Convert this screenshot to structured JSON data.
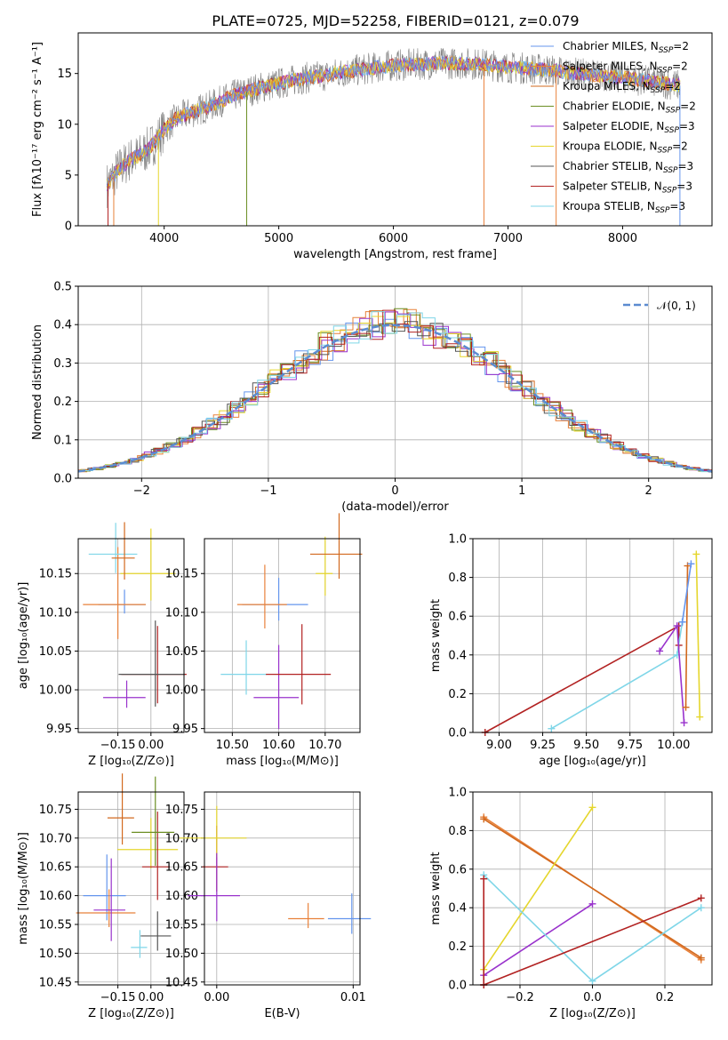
{
  "title": "PLATE=0725, MJD=52258, FIBERID=0121, z=0.079",
  "colors": [
    "#6495ed",
    "#e8813a",
    "#d2691e",
    "#6b8e23",
    "#9932cc",
    "#e5d62c",
    "#555555",
    "#b22222",
    "#7fd6e8"
  ],
  "chart_data": [
    {
      "type": "line",
      "id": "spectrum",
      "xlabel": "wavelength [Angstrom, rest frame]",
      "ylabel": "Flux [fλ10⁻¹⁷ erg cm⁻² s⁻¹ A⁻¹]",
      "xlim": [
        3250,
        8780
      ],
      "ylim": [
        0,
        19
      ],
      "xticks": [
        4000,
        5000,
        6000,
        7000,
        8000
      ],
      "yticks": [
        0,
        5,
        10,
        15
      ],
      "series_labels": [
        "Chabrier MILES, N_SSP=2",
        "Salpeter MILES, N_SSP=2",
        "Kroupa MILES, N_SSP=2",
        "Chabrier ELODIE, N_SSP=2",
        "Salpeter ELODIE, N_SSP=3",
        "Kroupa ELODIE, N_SSP=2",
        "Chabrier STELIB, N_SSP=3",
        "Salpeter STELIB, N_SSP=3",
        "Kroupa STELIB, N_SSP=3"
      ],
      "continuum": [
        [
          3500,
          4
        ],
        [
          3600,
          5.5
        ],
        [
          3700,
          6.5
        ],
        [
          3800,
          7
        ],
        [
          3900,
          8
        ],
        [
          4000,
          9.5
        ],
        [
          4100,
          10.5
        ],
        [
          4200,
          11
        ],
        [
          4400,
          11.8
        ],
        [
          4600,
          12.8
        ],
        [
          4800,
          13.5
        ],
        [
          5000,
          14
        ],
        [
          5200,
          14.5
        ],
        [
          5400,
          14.8
        ],
        [
          5600,
          15.2
        ],
        [
          5800,
          15.5
        ],
        [
          6000,
          15.8
        ],
        [
          6200,
          15.9
        ],
        [
          6400,
          16
        ],
        [
          6600,
          16
        ],
        [
          6800,
          15.9
        ],
        [
          7000,
          15.6
        ],
        [
          7200,
          15.5
        ],
        [
          7400,
          15.3
        ],
        [
          7600,
          15
        ],
        [
          7800,
          14.8
        ],
        [
          8000,
          14.6
        ],
        [
          8200,
          14.3
        ],
        [
          8400,
          14
        ],
        [
          8500,
          13.8
        ]
      ]
    },
    {
      "type": "line",
      "id": "residuals",
      "xlabel": "(data-model)/error",
      "ylabel": "Normed distribution",
      "xlim": [
        -2.5,
        2.5
      ],
      "ylim": [
        0,
        0.5
      ],
      "xticks": [
        -2,
        -1,
        0,
        1,
        2
      ],
      "yticks": [
        0.0,
        0.1,
        0.2,
        0.3,
        0.4,
        0.5
      ],
      "legend": "𝒩(0, 1)",
      "legend_loc": "upper right"
    },
    {
      "type": "scatter",
      "id": "age-vs-Z",
      "xlabel": "Z [log₁₀(Z/Z⊙)]",
      "ylabel": "age  [log₁₀(age/yr)]",
      "xlim": [
        -0.33,
        0.15
      ],
      "ylim": [
        9.945,
        10.195
      ],
      "xticks": [
        -0.15,
        0.0
      ],
      "yticks": [
        9.95,
        10.0,
        10.05,
        10.1,
        10.15
      ],
      "points": [
        {
          "x": -0.12,
          "y": 10.11,
          "c": 0
        },
        {
          "x": -0.15,
          "y": 10.11,
          "c": 1
        },
        {
          "x": -0.16,
          "y": 10.175,
          "c": 8
        },
        {
          "x": 0.0,
          "y": 10.15,
          "c": 5
        },
        {
          "x": -0.11,
          "y": 9.99,
          "c": 4
        },
        {
          "x": 0.03,
          "y": 10.02,
          "c": 7
        },
        {
          "x": 0.02,
          "y": 10.02,
          "c": 6
        },
        {
          "x": -0.12,
          "y": 10.17,
          "c": 2
        }
      ]
    },
    {
      "type": "scatter",
      "id": "age-vs-mass",
      "xlabel": "mass [log₁₀(M/M⊙)]",
      "ylabel": "",
      "xlim": [
        10.44,
        10.775
      ],
      "ylim": [
        9.945,
        10.195
      ],
      "xticks": [
        10.5,
        10.6,
        10.7
      ],
      "yticks": [
        9.95,
        10.0,
        10.05,
        10.1,
        10.15
      ],
      "points": [
        {
          "x": 10.6,
          "y": 10.11,
          "c": 0
        },
        {
          "x": 10.57,
          "y": 10.11,
          "c": 1
        },
        {
          "x": 10.7,
          "y": 10.15,
          "c": 5
        },
        {
          "x": 10.53,
          "y": 10.02,
          "c": 8
        },
        {
          "x": 10.6,
          "y": 9.99,
          "c": 4
        },
        {
          "x": 10.65,
          "y": 10.02,
          "c": 7
        },
        {
          "x": 10.73,
          "y": 10.175,
          "c": 2
        }
      ]
    },
    {
      "type": "line",
      "id": "massweight-vs-age",
      "xlabel": "age  [log₁₀(age/yr)]",
      "ylabel": "mass weight",
      "xlim": [
        8.85,
        10.22
      ],
      "ylim": [
        0,
        1
      ],
      "xticks": [
        9.0,
        9.25,
        9.5,
        9.75,
        10.0
      ],
      "yticks": [
        0.0,
        0.2,
        0.4,
        0.6,
        0.8,
        1.0
      ],
      "series": [
        {
          "c": 7,
          "pts": [
            [
              8.92,
              0
            ],
            [
              10.03,
              0.55
            ],
            [
              10.03,
              0.45
            ]
          ]
        },
        {
          "c": 8,
          "pts": [
            [
              9.3,
              0.02
            ],
            [
              10.02,
              0.4
            ],
            [
              10.05,
              0.57
            ]
          ]
        },
        {
          "c": 4,
          "pts": [
            [
              9.92,
              0.42
            ],
            [
              10.02,
              0.55
            ],
            [
              10.06,
              0.05
            ]
          ]
        },
        {
          "c": 2,
          "pts": [
            [
              10.08,
              0.86
            ],
            [
              10.07,
              0.13
            ]
          ]
        },
        {
          "c": 5,
          "pts": [
            [
              10.13,
              0.92
            ],
            [
              10.15,
              0.08
            ]
          ]
        },
        {
          "c": 0,
          "pts": [
            [
              10.05,
              0.57
            ],
            [
              10.1,
              0.87
            ]
          ]
        }
      ]
    },
    {
      "type": "scatter",
      "id": "mass-vs-Z",
      "xlabel": "Z [log₁₀(Z/Z⊙)]",
      "ylabel": "mass [log₁₀(M/M⊙)]",
      "xlim": [
        -0.33,
        0.15
      ],
      "ylim": [
        10.445,
        10.78
      ],
      "xticks": [
        -0.15,
        0.0
      ],
      "yticks": [
        10.45,
        10.5,
        10.55,
        10.6,
        10.65,
        10.7,
        10.75
      ],
      "points": [
        {
          "x": -0.2,
          "y": 10.6,
          "c": 0
        },
        {
          "x": -0.19,
          "y": 10.57,
          "c": 1
        },
        {
          "x": -0.13,
          "y": 10.735,
          "c": 2
        },
        {
          "x": 0.0,
          "y": 10.68,
          "c": 5
        },
        {
          "x": -0.18,
          "y": 10.575,
          "c": 4
        },
        {
          "x": 0.03,
          "y": 10.65,
          "c": 7
        },
        {
          "x": 0.03,
          "y": 10.53,
          "c": 6
        },
        {
          "x": -0.05,
          "y": 10.51,
          "c": 8
        },
        {
          "x": 0.02,
          "y": 10.71,
          "c": 3
        }
      ]
    },
    {
      "type": "scatter",
      "id": "mass-vs-ebv",
      "xlabel": "E(B-V)",
      "ylabel": "",
      "xlim": [
        -0.0009,
        0.0105
      ],
      "ylim": [
        10.445,
        10.78
      ],
      "xticks": [
        0.0,
        0.01
      ],
      "tick_labels": [
        "0.00",
        "0.01"
      ],
      "yticks": [
        10.45,
        10.5,
        10.55,
        10.6,
        10.65,
        10.7,
        10.75
      ],
      "points": [
        {
          "x": 0.0,
          "y": 10.65,
          "c": 7
        },
        {
          "x": 0.0,
          "y": 10.7,
          "c": 5
        },
        {
          "x": 0.0067,
          "y": 10.56,
          "c": 1
        },
        {
          "x": 0.0099,
          "y": 10.56,
          "c": 0
        },
        {
          "x": 0.0,
          "y": 10.6,
          "c": 4
        }
      ]
    },
    {
      "type": "line",
      "id": "massweight-vs-Z",
      "xlabel": "Z [log₁₀(Z/Z⊙)]",
      "ylabel": "mass weight",
      "xlim": [
        -0.33,
        0.33
      ],
      "ylim": [
        0,
        1
      ],
      "xticks": [
        -0.2,
        0.0,
        0.2
      ],
      "yticks": [
        0.0,
        0.2,
        0.4,
        0.6,
        0.8,
        1.0
      ],
      "series": [
        {
          "c": 1,
          "pts": [
            [
              -0.3,
              0.87
            ],
            [
              0.3,
              0.13
            ]
          ]
        },
        {
          "c": 2,
          "pts": [
            [
              -0.3,
              0.86
            ],
            [
              0.3,
              0.14
            ]
          ]
        },
        {
          "c": 5,
          "pts": [
            [
              -0.3,
              0.08
            ],
            [
              0.0,
              0.92
            ]
          ]
        },
        {
          "c": 4,
          "pts": [
            [
              -0.3,
              0.05
            ],
            [
              0.0,
              0.42
            ]
          ]
        },
        {
          "c": 8,
          "pts": [
            [
              -0.3,
              0.57
            ],
            [
              0.0,
              0.02
            ],
            [
              0.3,
              0.4
            ]
          ]
        },
        {
          "c": 7,
          "pts": [
            [
              -0.3,
              0.0
            ],
            [
              0.3,
              0.45
            ]
          ]
        },
        {
          "c": 7,
          "pts": [
            [
              -0.3,
              0.55
            ],
            [
              -0.3,
              0.0
            ]
          ]
        }
      ]
    }
  ]
}
